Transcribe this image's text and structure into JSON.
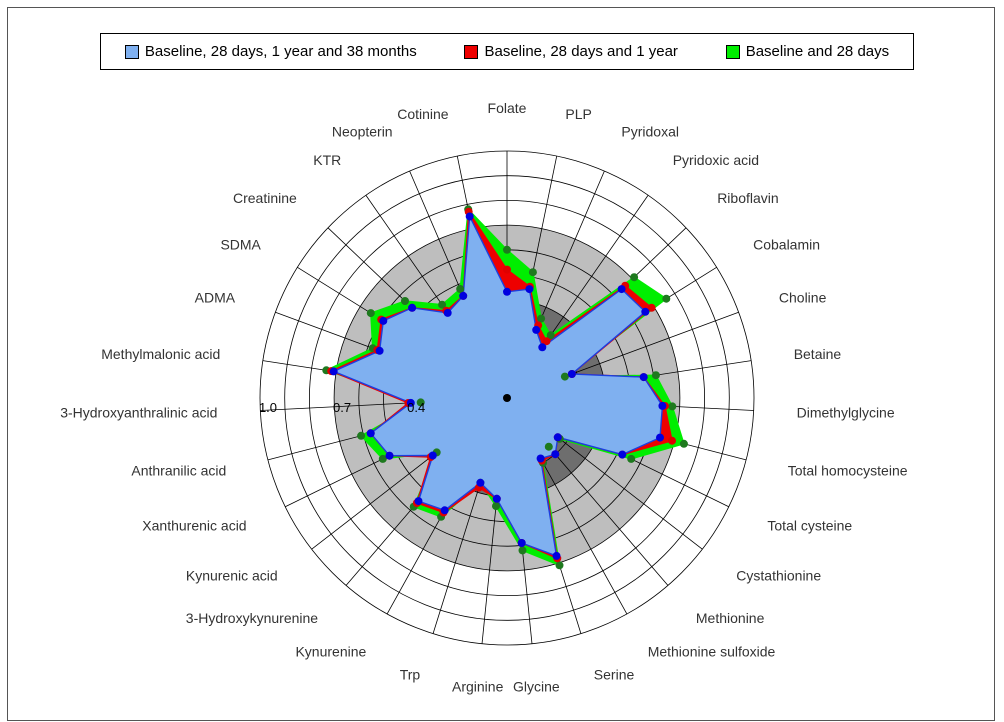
{
  "chart_data": {
    "type": "radar",
    "variables": [
      "Folate",
      "PLP",
      "Pyridoxal",
      "Pyridoxic acid",
      "Riboflavin",
      "Cobalamin",
      "Choline",
      "Betaine",
      "Dimethylglycine",
      "Total homocysteine",
      "Total cysteine",
      "Cystathionine",
      "Methionine",
      "Methionine sulfoxide",
      "Serine",
      "Glycine",
      "Arginine",
      "Trp",
      "Kynurenine",
      "3-Hydroxykynurenine",
      "Kynurenic acid",
      "Xanthurenic acid",
      "Anthranilic acid",
      "3-Hydroxyanthralinic acid",
      "Methylmalonic acid",
      "ADMA",
      "SDMA",
      "Creatinine",
      "KTR",
      "Neopterin",
      "Cotinine"
    ],
    "radial_scale": {
      "min": 0,
      "max": 1.0,
      "rings": 10,
      "tick_labels": [
        "0.4",
        "0.7",
        "1.0"
      ],
      "tick_values": [
        0.4,
        0.7,
        1.0
      ]
    },
    "shaded_bands": [
      {
        "from": 0,
        "to": 0.4,
        "color": "#6e6e6e"
      },
      {
        "from": 0.4,
        "to": 0.7,
        "color": "#bebebe"
      },
      {
        "from": 0.7,
        "to": 1.0,
        "color": "#ffffff"
      }
    ],
    "series": [
      {
        "name": "Baseline and 28 days",
        "color": "#00ee00",
        "point_color": "#1e7a1e",
        "values": [
          0.6,
          0.52,
          0.35,
          0.31,
          0.71,
          0.76,
          0.25,
          0.61,
          0.67,
          0.74,
          0.56,
          0.27,
          0.26,
          0.3,
          0.71,
          0.62,
          0.44,
          0.36,
          0.55,
          0.58,
          0.36,
          0.56,
          0.61,
          0.35,
          0.74,
          0.58,
          0.65,
          0.57,
          0.46,
          0.48,
          0.78
        ]
      },
      {
        "name": "Baseline, 28 days and 1 year",
        "color": "#ee0000",
        "point_color": "#e00000",
        "values": [
          0.52,
          0.46,
          0.32,
          0.28,
          0.66,
          0.69,
          0.28,
          0.56,
          0.64,
          0.69,
          0.52,
          0.26,
          0.3,
          0.29,
          0.68,
          0.59,
          0.41,
          0.38,
          0.53,
          0.56,
          0.39,
          0.53,
          0.57,
          0.4,
          0.72,
          0.56,
          0.6,
          0.53,
          0.43,
          0.45,
          0.77
        ]
      },
      {
        "name": "Baseline, 28 days, 1 year and 38 months",
        "color": "#7fb0f0",
        "point_color": "#0000e0",
        "values": [
          0.43,
          0.45,
          0.3,
          0.25,
          0.64,
          0.66,
          0.28,
          0.56,
          0.63,
          0.64,
          0.52,
          0.26,
          0.3,
          0.28,
          0.67,
          0.59,
          0.41,
          0.36,
          0.52,
          0.55,
          0.38,
          0.53,
          0.57,
          0.39,
          0.71,
          0.55,
          0.59,
          0.53,
          0.42,
          0.45,
          0.75
        ]
      }
    ],
    "legend": {
      "position": "top",
      "entries": [
        {
          "label": "Baseline, 28 days, 1 year and 38 months",
          "color": "#7fb0f0"
        },
        {
          "label": "Baseline, 28 days and 1 year",
          "color": "#ee0000"
        },
        {
          "label": "Baseline and 28 days",
          "color": "#00ee00"
        }
      ]
    },
    "grid": true
  }
}
